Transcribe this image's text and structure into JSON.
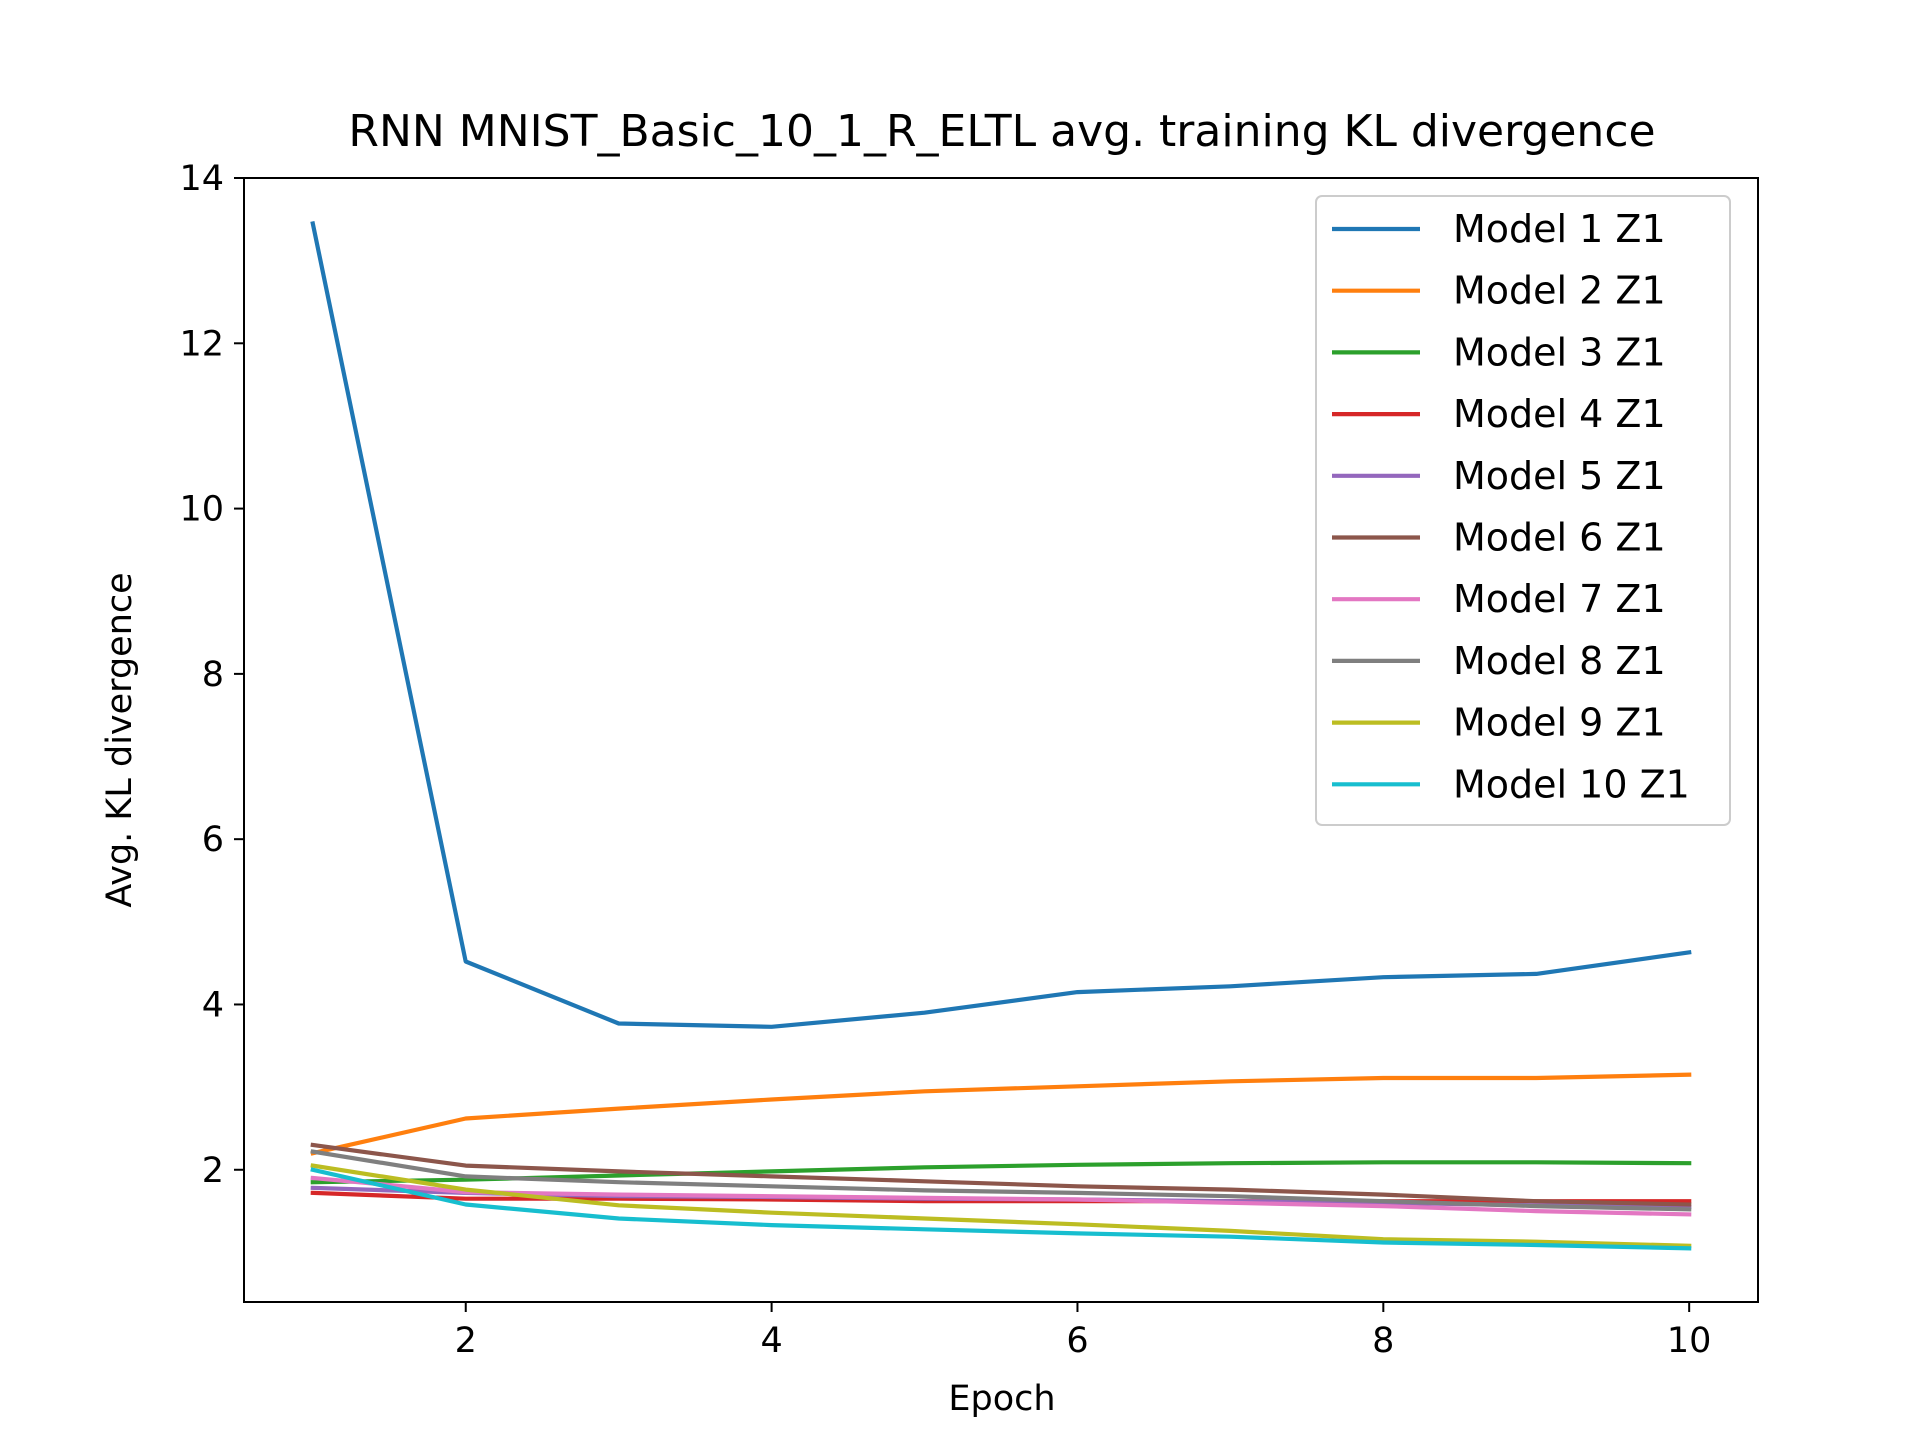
{
  "chart_data": {
    "type": "line",
    "title": "RNN MNIST_Basic_10_1_R_ELTL avg. training KL divergence",
    "xlabel": "Epoch",
    "ylabel": "Avg. KL divergence",
    "xlim": [
      0.55,
      10.45
    ],
    "ylim": [
      0.4,
      14
    ],
    "xticks": [
      2,
      4,
      6,
      8,
      10
    ],
    "yticks": [
      2,
      4,
      6,
      8,
      10,
      12,
      14
    ],
    "grid": false,
    "legend_position": "upper right",
    "x": [
      1,
      2,
      3,
      4,
      5,
      6,
      7,
      8,
      9,
      10
    ],
    "series": [
      {
        "name": "Model 1 Z1",
        "color": "#1f77b4",
        "values": [
          13.45,
          4.52,
          3.77,
          3.73,
          3.9,
          4.15,
          4.22,
          4.33,
          4.37,
          4.63
        ]
      },
      {
        "name": "Model 2 Z1",
        "color": "#ff7f0e",
        "values": [
          2.2,
          2.62,
          2.74,
          2.85,
          2.95,
          3.01,
          3.07,
          3.11,
          3.11,
          3.15
        ]
      },
      {
        "name": "Model 3 Z1",
        "color": "#2ca02c",
        "values": [
          1.85,
          1.88,
          1.93,
          1.98,
          2.03,
          2.06,
          2.08,
          2.09,
          2.09,
          2.08
        ]
      },
      {
        "name": "Model 4 Z1",
        "color": "#d62728",
        "values": [
          1.72,
          1.65,
          1.65,
          1.64,
          1.62,
          1.62,
          1.62,
          1.62,
          1.62,
          1.62
        ]
      },
      {
        "name": "Model 5 Z1",
        "color": "#9467bd",
        "values": [
          1.78,
          1.72,
          1.68,
          1.67,
          1.65,
          1.64,
          1.62,
          1.6,
          1.57,
          1.55
        ]
      },
      {
        "name": "Model 6 Z1",
        "color": "#8c564b",
        "values": [
          2.3,
          2.05,
          1.98,
          1.92,
          1.86,
          1.8,
          1.76,
          1.7,
          1.62,
          1.58
        ]
      },
      {
        "name": "Model 7 Z1",
        "color": "#e377c2",
        "values": [
          1.9,
          1.73,
          1.7,
          1.68,
          1.66,
          1.64,
          1.6,
          1.56,
          1.5,
          1.46
        ]
      },
      {
        "name": "Model 8 Z1",
        "color": "#7f7f7f",
        "values": [
          2.22,
          1.92,
          1.85,
          1.8,
          1.75,
          1.72,
          1.68,
          1.62,
          1.56,
          1.52
        ]
      },
      {
        "name": "Model 9 Z1",
        "color": "#bcbd22",
        "values": [
          2.05,
          1.76,
          1.57,
          1.48,
          1.41,
          1.34,
          1.26,
          1.16,
          1.13,
          1.08
        ]
      },
      {
        "name": "Model 10 Z1",
        "color": "#17becf",
        "values": [
          2.0,
          1.58,
          1.41,
          1.33,
          1.28,
          1.23,
          1.19,
          1.12,
          1.09,
          1.05
        ]
      }
    ]
  }
}
